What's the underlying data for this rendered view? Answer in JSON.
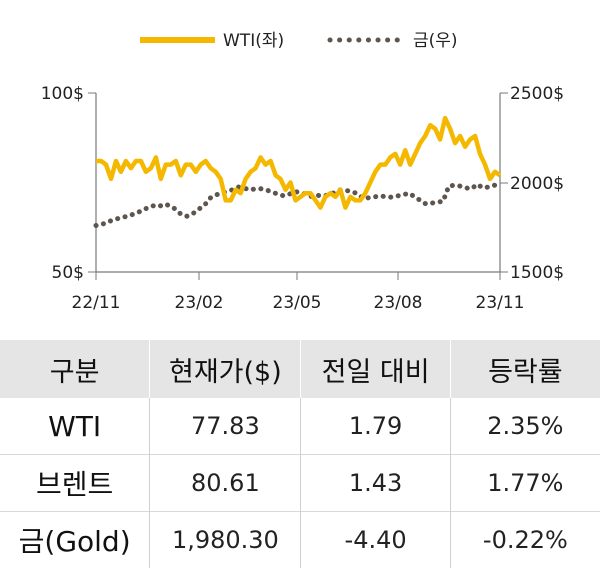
{
  "chart_data": {
    "type": "line",
    "legend": {
      "placement": "top",
      "entries": [
        "WTI(좌)",
        "금(우)"
      ]
    },
    "x_tick_labels": [
      "22/11",
      "23/02",
      "23/05",
      "23/08",
      "23/11"
    ],
    "y_left": {
      "min": 50,
      "max": 100,
      "ticks": [
        "100$",
        "50$"
      ]
    },
    "y_right": {
      "min": 1500,
      "max": 2500,
      "ticks": [
        "2500$",
        "2000$",
        "1500$"
      ]
    },
    "grid": false,
    "series": [
      {
        "name": "WTI(좌)",
        "axis": "left",
        "color": "#f5b800",
        "style": "solid",
        "values": [
          81,
          81,
          80,
          76,
          81,
          78,
          81,
          79,
          81,
          81,
          78,
          79,
          82,
          76,
          80,
          80,
          81,
          77,
          80,
          80,
          78,
          80,
          81,
          79,
          78,
          76,
          70,
          70,
          73,
          72,
          76,
          78,
          79,
          82,
          80,
          81,
          77,
          76,
          73,
          75,
          70,
          71,
          72,
          72,
          70,
          68,
          71,
          72,
          71,
          73,
          68,
          71,
          70,
          70,
          72,
          75,
          78,
          80,
          80,
          82,
          83,
          80,
          84,
          80,
          83,
          86,
          88,
          91,
          90,
          87,
          93,
          90,
          86,
          88,
          85,
          87,
          88,
          83,
          80,
          76,
          78,
          77
        ]
      },
      {
        "name": "금(우)",
        "axis": "right",
        "color": "#5e564e",
        "style": "dotted",
        "values": [
          1760,
          1765,
          1780,
          1790,
          1800,
          1808,
          1815,
          1830,
          1840,
          1858,
          1870,
          1865,
          1880,
          1870,
          1850,
          1820,
          1812,
          1825,
          1850,
          1870,
          1912,
          1930,
          1940,
          1950,
          1960,
          1975,
          1970,
          1958,
          1965,
          1965,
          1958,
          1945,
          1935,
          1925,
          1935,
          1950,
          1940,
          1935,
          1920,
          1928,
          1925,
          1932,
          1945,
          1960,
          1955,
          1950,
          1935,
          1910,
          1915,
          1920,
          1925,
          1920,
          1918,
          1925,
          1932,
          1940,
          1920,
          1900,
          1880,
          1885,
          1890,
          1895,
          1980,
          1985,
          1980,
          1970,
          1965,
          1990,
          1970,
          1975,
          1985,
          1978
        ]
      }
    ]
  },
  "table": {
    "headers": [
      "구분",
      "현재가($)",
      "전일 대비",
      "등락률"
    ],
    "rows": [
      [
        "WTI",
        "77.83",
        "1.79",
        "2.35%"
      ],
      [
        "브렌트",
        "80.61",
        "1.43",
        "1.77%"
      ],
      [
        "금(Gold)",
        "1,980.30",
        "-4.40",
        "-0.22%"
      ]
    ]
  }
}
